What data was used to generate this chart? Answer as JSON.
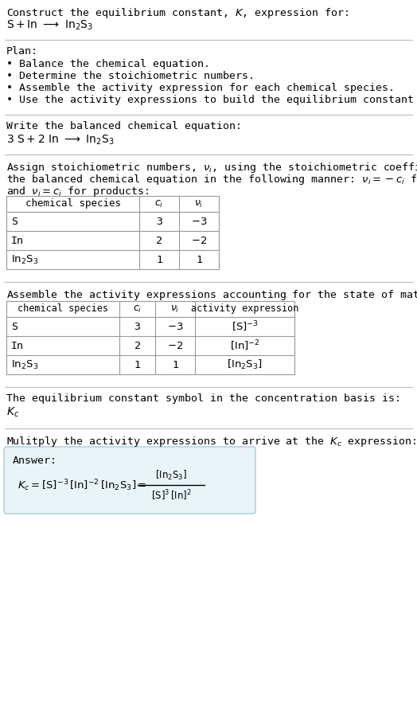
{
  "bg_color": "#ffffff",
  "text_color": "#000000",
  "divider_color": "#bbbbbb",
  "table_border_color": "#999999",
  "answer_bg": "#e8f4f8",
  "answer_border": "#aaccdd",
  "font_family": "monospace",
  "fs": 9.5,
  "title_line1": "Construct the equilibrium constant, $K$, expression for:",
  "title_line2": "$\\mathrm{S + In \\ \\longrightarrow \\ In_2S_3}$",
  "plan_header": "Plan:",
  "plan_bullets": [
    "• Balance the chemical equation.",
    "• Determine the stoichiometric numbers.",
    "• Assemble the activity expression for each chemical species.",
    "• Use the activity expressions to build the equilibrium constant expression."
  ],
  "balanced_header": "Write the balanced chemical equation:",
  "balanced_eq": "$\\mathrm{3\\ S + 2\\ In \\ \\longrightarrow \\ In_2S_3}$",
  "kc_header": "The equilibrium constant symbol in the concentration basis is:",
  "kc_symbol": "$K_c$",
  "multiply_header": "Mulitply the activity expressions to arrive at the $K_c$ expression:"
}
